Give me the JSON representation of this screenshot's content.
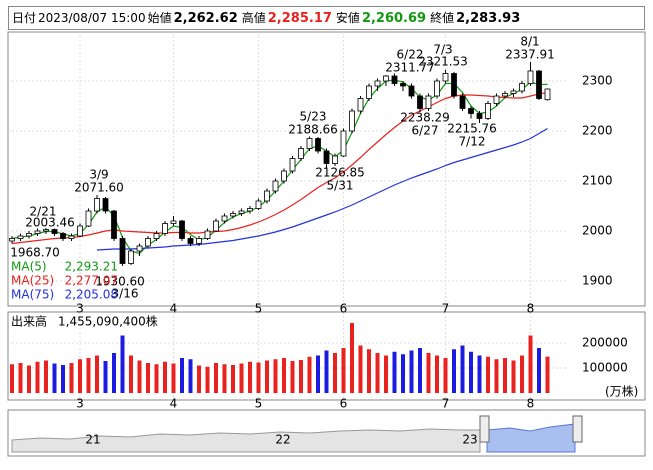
{
  "header": {
    "items": [
      {
        "label": "日付",
        "value": "2023/08/07 15:00",
        "color": "#000000"
      },
      {
        "label": "始値",
        "value": "2,262.62",
        "color": "#000000"
      },
      {
        "label": "高値",
        "value": "2,285.17",
        "color": "#e8231f"
      },
      {
        "label": "安値",
        "value": "2,260.69",
        "color": "#119911"
      },
      {
        "label": "終値",
        "value": "2,283.93",
        "color": "#000000"
      }
    ]
  },
  "chart_data": [
    {
      "type": "candlestick",
      "categories": [
        null,
        null,
        null,
        null,
        null,
        null,
        null,
        null,
        "3",
        null,
        null,
        null,
        null,
        null,
        null,
        null,
        null,
        null,
        null,
        "4",
        null,
        null,
        null,
        null,
        null,
        null,
        null,
        null,
        null,
        "5",
        null,
        null,
        null,
        null,
        null,
        null,
        null,
        null,
        null,
        "6",
        null,
        null,
        null,
        null,
        null,
        null,
        null,
        null,
        null,
        null,
        null,
        "7",
        null,
        null,
        null,
        null,
        null,
        null,
        null,
        null,
        null,
        "8",
        null,
        null
      ],
      "open": [
        1980,
        1985,
        1990,
        1995,
        2000,
        2003,
        1995,
        1985,
        1990,
        2010,
        2040,
        2065,
        2040,
        1985,
        1935,
        1960,
        1970,
        1985,
        1995,
        2015,
        2020,
        1985,
        1975,
        1985,
        2000,
        2020,
        2030,
        2035,
        2040,
        2045,
        2060,
        2080,
        2100,
        2120,
        2145,
        2165,
        2185,
        2160,
        2135,
        2150,
        2200,
        2240,
        2265,
        2290,
        2300,
        2310,
        2295,
        2290,
        2270,
        2245,
        2270,
        2300,
        2315,
        2270,
        2245,
        2235,
        2225,
        2255,
        2270,
        2275,
        2280,
        2295,
        2320,
        2262.62
      ],
      "high": [
        1990,
        1995,
        2000,
        2005,
        2006,
        2005,
        1998,
        1995,
        2015,
        2045,
        2072,
        2068,
        2042,
        1990,
        1965,
        1975,
        1990,
        2000,
        2020,
        2030,
        2022,
        1990,
        1990,
        2005,
        2025,
        2035,
        2040,
        2045,
        2050,
        2065,
        2085,
        2105,
        2125,
        2150,
        2170,
        2189,
        2188,
        2165,
        2155,
        2205,
        2245,
        2270,
        2295,
        2305,
        2312,
        2315,
        2300,
        2295,
        2275,
        2275,
        2305,
        2322,
        2318,
        2275,
        2250,
        2240,
        2260,
        2275,
        2280,
        2285,
        2300,
        2338,
        2322,
        2285.17
      ],
      "low": [
        1975,
        1980,
        1985,
        1990,
        1994,
        1990,
        1980,
        1980,
        1988,
        2008,
        2035,
        2035,
        1980,
        1930,
        1932,
        1950,
        1965,
        1980,
        1990,
        2010,
        1980,
        1970,
        1970,
        1982,
        1998,
        2015,
        2025,
        2030,
        2035,
        2042,
        2055,
        2075,
        2095,
        2115,
        2140,
        2160,
        2155,
        2127,
        2130,
        2148,
        2195,
        2235,
        2260,
        2280,
        2290,
        2290,
        2280,
        2265,
        2238,
        2240,
        2265,
        2295,
        2265,
        2240,
        2225,
        2216,
        2222,
        2250,
        2265,
        2268,
        2275,
        2290,
        2262,
        2260.69
      ],
      "close": [
        1985,
        1990,
        1995,
        2000,
        2003,
        1995,
        1985,
        1990,
        2010,
        2040,
        2065,
        2040,
        1985,
        1935,
        1960,
        1970,
        1985,
        1995,
        2015,
        2020,
        1985,
        1975,
        1985,
        2000,
        2020,
        2030,
        2035,
        2040,
        2045,
        2060,
        2080,
        2100,
        2120,
        2145,
        2165,
        2185,
        2160,
        2135,
        2150,
        2200,
        2240,
        2265,
        2290,
        2300,
        2310,
        2295,
        2290,
        2270,
        2245,
        2270,
        2300,
        2315,
        2270,
        2245,
        2235,
        2225,
        2255,
        2270,
        2275,
        2280,
        2295,
        2320,
        2265,
        2283.93
      ],
      "up_color": "#ffffff",
      "down_color": "#000000",
      "series": [
        {
          "name": "MA(5)",
          "legend_value": "2,293.21",
          "color": "#119911",
          "values": [
            1985,
            1988,
            1990,
            1995,
            1999,
            1999,
            1994,
            1990,
            1995,
            2013,
            2038,
            2048,
            2030,
            1987,
            1960,
            1955,
            1972,
            1983,
            1998,
            2010,
            2007,
            1993,
            1982,
            1987,
            2002,
            2017,
            2028,
            2035,
            2040,
            2048,
            2062,
            2080,
            2100,
            2122,
            2143,
            2165,
            2170,
            2160,
            2148,
            2162,
            2197,
            2235,
            2265,
            2285,
            2300,
            2302,
            2298,
            2285,
            2268,
            2262,
            2272,
            2295,
            2295,
            2277,
            2250,
            2235,
            2238,
            2250,
            2267,
            2275,
            2283,
            2298,
            2293,
            2293.21
          ]
        },
        {
          "name": "MA(25)",
          "legend_value": "2,277.07",
          "color": "#e8231f",
          "values": [
            1975,
            1977,
            1979,
            1981,
            1983,
            1985,
            1986,
            1987,
            1989,
            1992,
            1996,
            2000,
            2002,
            2000,
            1999,
            1998,
            1997,
            1996,
            1996,
            1997,
            1997,
            1996,
            1996,
            1998,
            1999,
            2000,
            2003,
            2007,
            2012,
            2018,
            2025,
            2033,
            2042,
            2052,
            2063,
            2075,
            2087,
            2097,
            2106,
            2118,
            2132,
            2147,
            2163,
            2178,
            2193,
            2207,
            2220,
            2232,
            2240,
            2248,
            2257,
            2265,
            2270,
            2272,
            2272,
            2271,
            2270,
            2268,
            2267,
            2266,
            2266,
            2270,
            2274,
            2277.07
          ]
        },
        {
          "name": "MA(75)",
          "legend_value": "2,205.08",
          "color": "#2233dd",
          "values": [
            null,
            null,
            null,
            null,
            null,
            null,
            null,
            null,
            null,
            null,
            1962,
            1963,
            1964,
            1964,
            1964,
            1965,
            1966,
            1967,
            1968,
            1970,
            1971,
            1972,
            1973,
            1975,
            1977,
            1979,
            1981,
            1984,
            1987,
            1990,
            1994,
            1998,
            2003,
            2008,
            2014,
            2020,
            2026,
            2032,
            2038,
            2045,
            2052,
            2060,
            2068,
            2076,
            2084,
            2092,
            2099,
            2106,
            2112,
            2118,
            2124,
            2131,
            2137,
            2142,
            2147,
            2152,
            2157,
            2162,
            2167,
            2172,
            2178,
            2185,
            2195,
            2205.08
          ]
        }
      ],
      "ylim": [
        1862,
        2392
      ],
      "yticks": [
        1900,
        2000,
        2100,
        2200,
        2300
      ],
      "grid": true,
      "annotations": [
        {
          "text": "2/21"
        },
        {
          "text": "2003.46"
        },
        {
          "text": "3/9"
        },
        {
          "text": "2071.60"
        },
        {
          "text": "5/23"
        },
        {
          "text": "2188.66"
        },
        {
          "text": "6/22"
        },
        {
          "text": "2311.77"
        },
        {
          "text": "7/3"
        },
        {
          "text": "2321.53"
        },
        {
          "text": "8/1"
        },
        {
          "text": "2337.91"
        },
        {
          "text": "2126.85"
        },
        {
          "text": "5/31"
        },
        {
          "text": "2238.29"
        },
        {
          "text": "6/27"
        },
        {
          "text": "2215.76"
        },
        {
          "text": "7/12"
        },
        {
          "text": "1968.70"
        },
        {
          "text": "1930.60"
        },
        {
          "text": "3/16"
        }
      ]
    },
    {
      "type": "volume",
      "title": "出来高",
      "title_value": "1,455,090,400株",
      "unit": "(万株)",
      "up_color": "#e8231f",
      "down_color": "#1c1ce0",
      "values": [
        115000,
        120000,
        110000,
        125000,
        130000,
        118000,
        112000,
        120000,
        135000,
        140000,
        150000,
        128000,
        160000,
        230000,
        150000,
        130000,
        120000,
        115000,
        125000,
        118000,
        140000,
        135000,
        110000,
        105000,
        120000,
        115000,
        112000,
        118000,
        125000,
        122000,
        130000,
        135000,
        140000,
        128000,
        132000,
        145000,
        150000,
        170000,
        160000,
        180000,
        280000,
        190000,
        175000,
        160000,
        150000,
        165000,
        155000,
        170000,
        180000,
        160000,
        150000,
        140000,
        175000,
        190000,
        165000,
        150000,
        145000,
        135000,
        140000,
        130000,
        150000,
        230000,
        180000,
        145509
      ],
      "ylim": [
        0,
        320000
      ],
      "yticks": [
        100000,
        200000
      ]
    },
    {
      "type": "navigator",
      "labels": [
        "21",
        "22",
        "23"
      ]
    }
  ]
}
